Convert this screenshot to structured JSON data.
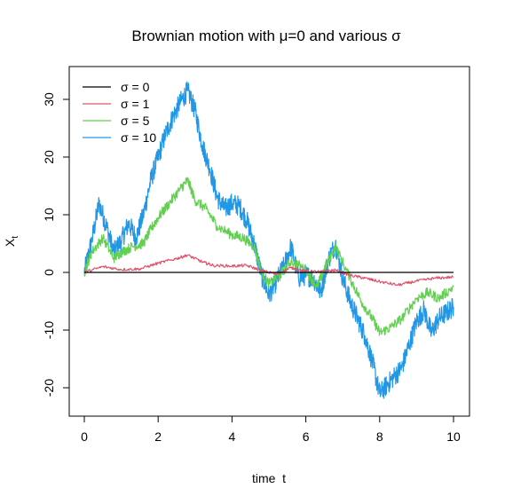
{
  "chart_data": {
    "type": "line",
    "title": "Brownian motion with μ=0 and various σ",
    "xlabel": "time  t",
    "ylabel": "X",
    "ylabel_subscript": "t",
    "xlim": [
      0,
      10
    ],
    "ylim": [
      -25,
      35
    ],
    "xticks": [
      0,
      2,
      4,
      6,
      8,
      10
    ],
    "yticks": [
      -20,
      -10,
      0,
      10,
      20,
      30
    ],
    "grid": false,
    "legend_position": "top-left",
    "series": [
      {
        "name": "σ = 0",
        "color": "#000000",
        "x": [
          0,
          10
        ],
        "y": [
          0,
          0
        ]
      },
      {
        "name": "σ = 1",
        "color": "#DF536B",
        "x": [
          0,
          0.5,
          1.0,
          1.5,
          2.0,
          2.5,
          2.8,
          3.2,
          3.5,
          4.0,
          4.4,
          4.8,
          5.2,
          5.6,
          6.0,
          6.4,
          6.8,
          7.2,
          7.6,
          8.0,
          8.5,
          9.0,
          9.5,
          10.0
        ],
        "y": [
          0,
          1.0,
          0.5,
          0.6,
          1.6,
          2.4,
          3.0,
          1.8,
          1.2,
          1.1,
          1.2,
          0.3,
          -0.3,
          0.8,
          0.2,
          0.1,
          0.4,
          -0.5,
          -1.0,
          -1.6,
          -2.2,
          -1.5,
          -1.0,
          -0.8
        ]
      },
      {
        "name": "σ = 5",
        "color": "#61D04F",
        "x": [
          0,
          0.2,
          0.5,
          0.8,
          1.0,
          1.3,
          1.6,
          1.8,
          2.0,
          2.3,
          2.6,
          2.8,
          3.0,
          3.3,
          3.6,
          4.0,
          4.3,
          4.6,
          4.8,
          5.0,
          5.3,
          5.6,
          6.0,
          6.3,
          6.5,
          6.8,
          7.2,
          7.5,
          7.8,
          8.0,
          8.3,
          8.6,
          9.0,
          9.3,
          9.6,
          10.0
        ],
        "y": [
          0,
          3.5,
          6.0,
          2.5,
          3.5,
          4.5,
          5.0,
          7.5,
          9.5,
          12.0,
          14.5,
          16.0,
          12.5,
          11.0,
          8.0,
          6.5,
          6.0,
          4.5,
          0,
          -2.0,
          -0.5,
          2.0,
          0.5,
          -2.5,
          0.5,
          4.5,
          -1.0,
          -5.0,
          -8.0,
          -10.5,
          -9.5,
          -8.0,
          -4.5,
          -3.5,
          -4.5,
          -2.5
        ]
      },
      {
        "name": "σ = 10",
        "color": "#2297E6",
        "x": [
          0,
          0.2,
          0.4,
          0.6,
          0.8,
          1.0,
          1.2,
          1.4,
          1.6,
          1.8,
          2.0,
          2.2,
          2.4,
          2.6,
          2.8,
          3.0,
          3.2,
          3.4,
          3.6,
          3.8,
          4.0,
          4.2,
          4.4,
          4.6,
          4.8,
          5.0,
          5.2,
          5.4,
          5.6,
          5.8,
          6.0,
          6.2,
          6.4,
          6.6,
          6.8,
          7.0,
          7.2,
          7.4,
          7.6,
          7.8,
          8.0,
          8.2,
          8.4,
          8.6,
          8.8,
          9.0,
          9.2,
          9.4,
          9.6,
          9.8,
          10.0
        ],
        "y": [
          0,
          5.5,
          12.0,
          8.0,
          3.5,
          5.5,
          8.5,
          6.0,
          10.0,
          16.0,
          20.0,
          24.0,
          27.0,
          29.5,
          31.5,
          28.0,
          22.0,
          18.0,
          13.0,
          11.0,
          12.0,
          11.5,
          9.0,
          5.0,
          -0.5,
          -4.0,
          -1.5,
          1.0,
          4.5,
          -1.0,
          -0.5,
          -1.0,
          -3.5,
          2.0,
          5.0,
          -1.0,
          -5.0,
          -8.0,
          -11.0,
          -15.5,
          -21.0,
          -19.5,
          -18.0,
          -16.5,
          -12.5,
          -8.5,
          -6.5,
          -10.5,
          -8.0,
          -7.0,
          -6.0
        ]
      }
    ]
  }
}
